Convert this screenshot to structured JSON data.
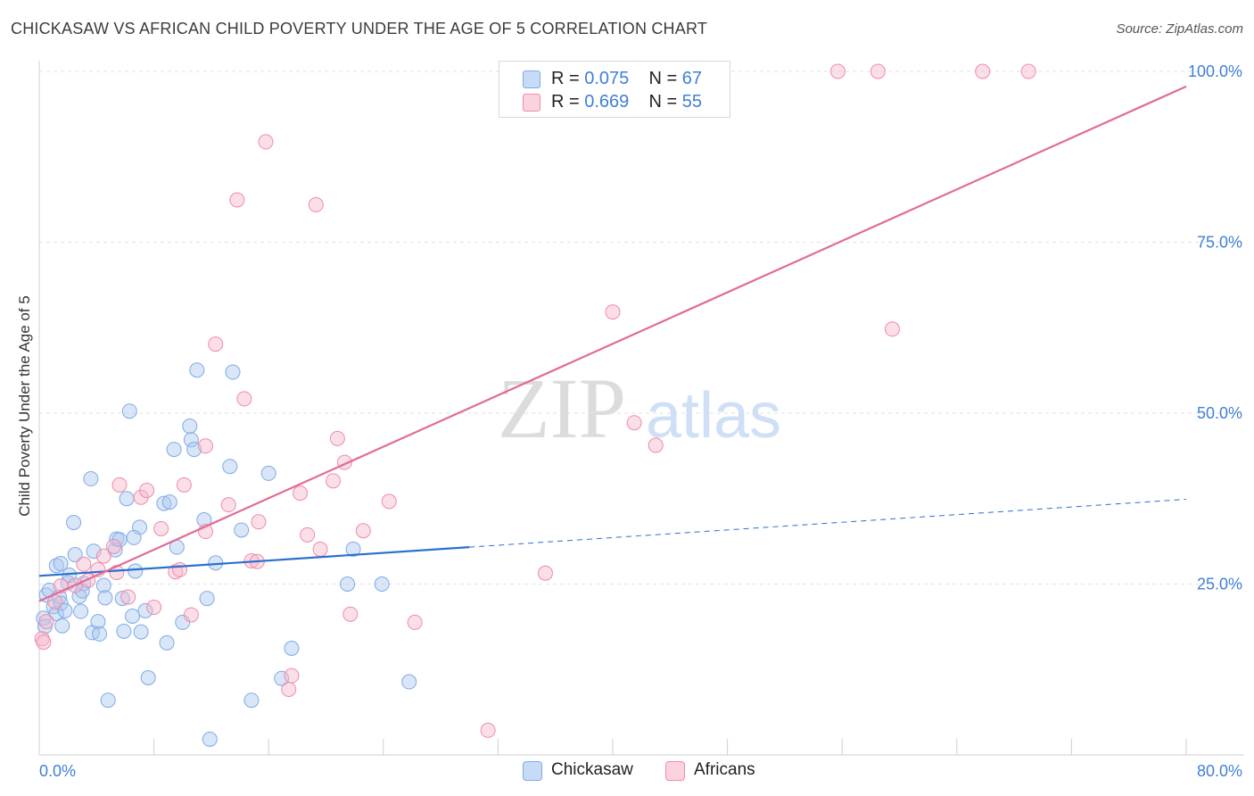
{
  "title": "CHICKASAW VS AFRICAN CHILD POVERTY UNDER THE AGE OF 5 CORRELATION CHART",
  "source": "Source: ZipAtlas.com",
  "watermark": {
    "zip": "ZIP",
    "atlas": "atlas"
  },
  "legend": {
    "rows": [
      {
        "r_label": "R = ",
        "r_value": "0.075",
        "n_label": "N = ",
        "n_value": "67",
        "color": "#aac8f0"
      },
      {
        "r_label": "R = ",
        "r_value": "0.669",
        "n_label": "N = ",
        "n_value": "55",
        "color": "#f6b8cb"
      }
    ]
  },
  "bottom_legend": {
    "items": [
      {
        "label": "Chickasaw",
        "color": "#aac8f0"
      },
      {
        "label": "Africans",
        "color": "#f6b8cb"
      }
    ]
  },
  "chart_data": {
    "type": "scatter",
    "ylabel": "Child Poverty Under the Age of 5",
    "xlim": [
      0,
      80
    ],
    "ylim": [
      0,
      105
    ],
    "x_tick_labels": [
      {
        "value": 0,
        "label": "0.0%"
      },
      {
        "value": 80,
        "label": "80.0%"
      }
    ],
    "y_tick_labels": [
      {
        "value": 25,
        "label": "25.0%"
      },
      {
        "value": 50,
        "label": "50.0%"
      },
      {
        "value": 75,
        "label": "75.0%"
      },
      {
        "value": 100,
        "label": "100.0%"
      }
    ],
    "grid": true,
    "series": [
      {
        "name": "Chickasaw",
        "color": "#aac8f0",
        "stroke": "#7eaae6",
        "line_color": "#2a6fd0",
        "trend": {
          "x0": 0,
          "y0": 26.2,
          "x1": 30,
          "y1": 30.4,
          "x_end": 80,
          "y_end": 37.4
        },
        "points": [
          [
            0.3,
            20.0
          ],
          [
            0.4,
            18.8
          ],
          [
            0.5,
            23.4
          ],
          [
            0.7,
            24.1
          ],
          [
            1.0,
            21.7
          ],
          [
            1.2,
            27.7
          ],
          [
            1.2,
            20.7
          ],
          [
            1.4,
            23.1
          ],
          [
            1.5,
            22.2
          ],
          [
            1.6,
            18.9
          ],
          [
            1.8,
            21.1
          ],
          [
            2.0,
            25.2
          ],
          [
            2.1,
            26.3
          ],
          [
            2.4,
            34.0
          ],
          [
            2.5,
            29.3
          ],
          [
            2.8,
            23.2
          ],
          [
            3.1,
            25.1
          ],
          [
            3.6,
            40.4
          ],
          [
            3.7,
            17.9
          ],
          [
            3.8,
            29.8
          ],
          [
            4.1,
            19.5
          ],
          [
            4.2,
            17.7
          ],
          [
            4.5,
            24.8
          ],
          [
            4.6,
            23.0
          ],
          [
            4.8,
            8.0
          ],
          [
            5.3,
            30.0
          ],
          [
            5.4,
            31.6
          ],
          [
            5.6,
            31.5
          ],
          [
            5.8,
            22.9
          ],
          [
            5.9,
            18.1
          ],
          [
            6.1,
            37.5
          ],
          [
            6.3,
            50.3
          ],
          [
            6.5,
            20.3
          ],
          [
            6.7,
            26.9
          ],
          [
            7.0,
            33.3
          ],
          [
            7.1,
            18.0
          ],
          [
            7.4,
            21.1
          ],
          [
            7.6,
            11.3
          ],
          [
            8.7,
            36.8
          ],
          [
            8.9,
            16.4
          ],
          [
            9.1,
            37.0
          ],
          [
            9.6,
            30.4
          ],
          [
            10.0,
            19.4
          ],
          [
            10.5,
            48.1
          ],
          [
            10.6,
            46.1
          ],
          [
            10.8,
            44.7
          ],
          [
            11.0,
            56.3
          ],
          [
            11.5,
            34.4
          ],
          [
            11.7,
            22.9
          ],
          [
            11.9,
            2.3
          ],
          [
            12.3,
            28.1
          ],
          [
            13.3,
            42.2
          ],
          [
            13.5,
            56.0
          ],
          [
            14.1,
            32.9
          ],
          [
            14.8,
            8.0
          ],
          [
            16.0,
            41.2
          ],
          [
            16.9,
            11.2
          ],
          [
            17.6,
            15.6
          ],
          [
            21.5,
            25.0
          ],
          [
            21.9,
            30.1
          ],
          [
            23.9,
            25.0
          ],
          [
            25.8,
            10.7
          ],
          [
            9.4,
            44.7
          ],
          [
            3.0,
            24.0
          ],
          [
            2.9,
            21.0
          ],
          [
            1.5,
            28.0
          ],
          [
            6.6,
            31.8
          ]
        ]
      },
      {
        "name": "Africans",
        "color": "#f6b8cb",
        "stroke": "#f08aa8",
        "line_color": "#e26b96",
        "trend": {
          "x0": 0,
          "y0": 22.5,
          "x1": 80,
          "y1": 97.8
        },
        "points": [
          [
            0.2,
            17.0
          ],
          [
            0.5,
            19.5
          ],
          [
            1.1,
            22.4
          ],
          [
            1.5,
            24.7
          ],
          [
            2.5,
            24.8
          ],
          [
            3.1,
            27.9
          ],
          [
            3.4,
            25.5
          ],
          [
            4.1,
            27.1
          ],
          [
            4.5,
            29.1
          ],
          [
            5.2,
            30.5
          ],
          [
            5.4,
            26.7
          ],
          [
            5.6,
            39.5
          ],
          [
            6.2,
            23.1
          ],
          [
            7.1,
            37.7
          ],
          [
            7.5,
            38.7
          ],
          [
            8.0,
            21.6
          ],
          [
            8.5,
            33.1
          ],
          [
            9.5,
            26.8
          ],
          [
            9.8,
            27.1
          ],
          [
            10.1,
            39.5
          ],
          [
            10.6,
            20.5
          ],
          [
            11.6,
            32.7
          ],
          [
            11.6,
            45.2
          ],
          [
            12.3,
            60.1
          ],
          [
            13.2,
            36.6
          ],
          [
            13.8,
            81.2
          ],
          [
            14.3,
            52.1
          ],
          [
            14.8,
            28.4
          ],
          [
            15.2,
            28.3
          ],
          [
            15.3,
            34.1
          ],
          [
            15.8,
            89.7
          ],
          [
            17.4,
            9.6
          ],
          [
            17.6,
            11.6
          ],
          [
            18.2,
            38.3
          ],
          [
            18.7,
            32.2
          ],
          [
            19.3,
            80.5
          ],
          [
            19.6,
            30.1
          ],
          [
            20.5,
            40.1
          ],
          [
            20.8,
            46.3
          ],
          [
            21.3,
            42.8
          ],
          [
            21.7,
            20.6
          ],
          [
            22.6,
            32.8
          ],
          [
            24.4,
            37.1
          ],
          [
            26.2,
            19.4
          ],
          [
            31.3,
            3.6
          ],
          [
            35.3,
            26.6
          ],
          [
            40.0,
            64.8
          ],
          [
            41.5,
            48.6
          ],
          [
            43.0,
            45.3
          ],
          [
            55.7,
            100.0
          ],
          [
            58.5,
            100.0
          ],
          [
            59.5,
            62.3
          ],
          [
            65.8,
            100.0
          ],
          [
            69.0,
            100.0
          ],
          [
            0.3,
            16.5
          ]
        ]
      }
    ]
  }
}
